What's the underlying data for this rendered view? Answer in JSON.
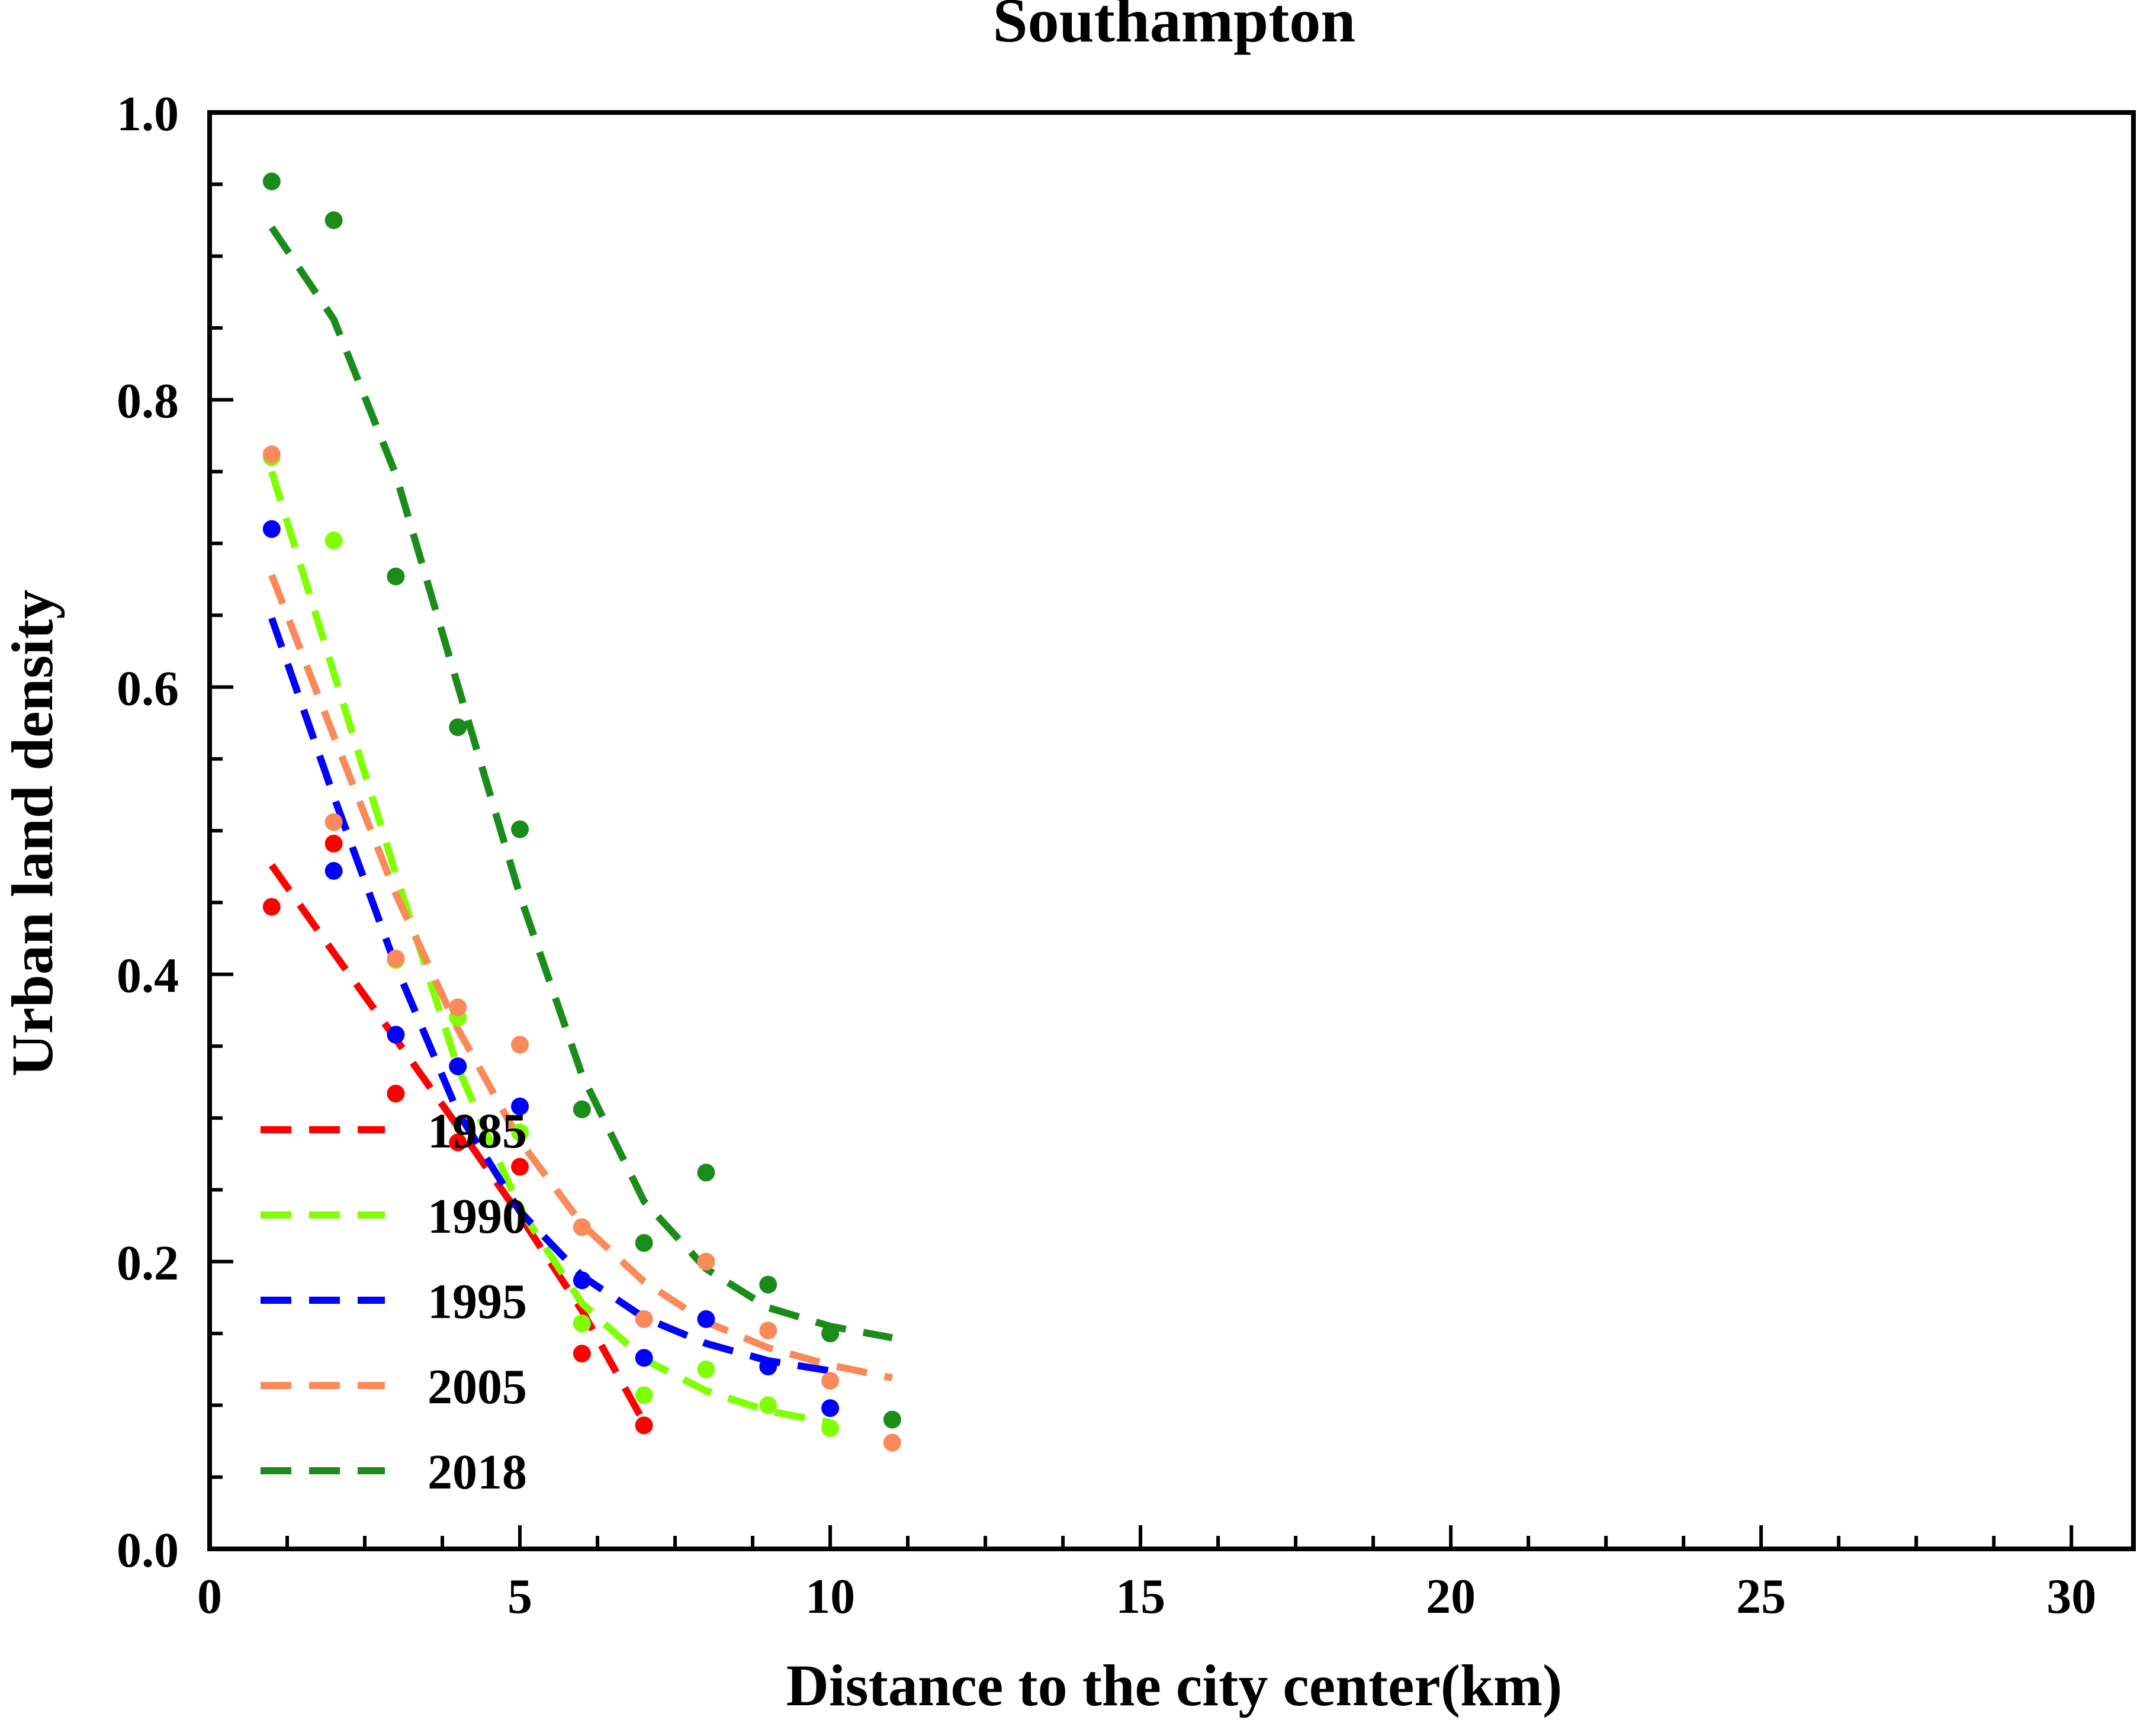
{
  "chart_data": {
    "type": "scatter",
    "title": "Southampton",
    "xlabel": "Distance to the city center(km)",
    "ylabel": "Urban land density",
    "xlim": [
      0,
      31
    ],
    "ylim": [
      0,
      1.0
    ],
    "grid": false,
    "legend_position": "lower-left",
    "x_ticks": [
      0,
      5,
      10,
      15,
      20,
      25,
      30
    ],
    "x_tick_labels": [
      "0",
      "5",
      "10",
      "15",
      "20",
      "25",
      "30"
    ],
    "y_ticks": [
      0.0,
      0.2,
      0.4,
      0.6,
      0.8,
      1.0
    ],
    "y_tick_labels": [
      "0.0",
      "0.2",
      "0.4",
      "0.6",
      "0.8",
      "1.0"
    ],
    "series": [
      {
        "name": "1985",
        "color": "#ff0000",
        "points": {
          "x": [
            1,
            2,
            3,
            4,
            5,
            6,
            7
          ],
          "y": [
            0.447,
            0.491,
            0.317,
            0.283,
            0.266,
            0.136,
            0.086
          ]
        },
        "fit": {
          "x": [
            1,
            2,
            3,
            4,
            5,
            6,
            7
          ],
          "y": [
            0.476,
            0.415,
            0.355,
            0.294,
            0.232,
            0.166,
            0.088
          ]
        }
      },
      {
        "name": "1990",
        "color": "#7fff00",
        "points": {
          "x": [
            1,
            2,
            3,
            4,
            5,
            6,
            7,
            8,
            9,
            10
          ],
          "y": [
            0.76,
            0.702,
            0.41,
            0.37,
            0.29,
            0.157,
            0.107,
            0.125,
            0.1,
            0.084
          ]
        },
        "fit": {
          "x": [
            1,
            2,
            3,
            4,
            5,
            6,
            7,
            8,
            9,
            10
          ],
          "y": [
            0.75,
            0.61,
            0.47,
            0.335,
            0.237,
            0.171,
            0.132,
            0.11,
            0.096,
            0.088
          ]
        }
      },
      {
        "name": "1995",
        "color": "#0000ff",
        "points": {
          "x": [
            1,
            2,
            3,
            4,
            5,
            6,
            7,
            8,
            9,
            10
          ],
          "y": [
            0.71,
            0.472,
            0.358,
            0.336,
            0.308,
            0.187,
            0.133,
            0.16,
            0.127,
            0.098
          ]
        },
        "fit": {
          "x": [
            1,
            2,
            3,
            4,
            5,
            6,
            7,
            8,
            9,
            10
          ],
          "y": [
            0.648,
            0.524,
            0.406,
            0.304,
            0.235,
            0.19,
            0.161,
            0.143,
            0.131,
            0.124
          ]
        }
      },
      {
        "name": "2005",
        "color": "#fa8a5a",
        "points": {
          "x": [
            1,
            2,
            3,
            4,
            5,
            6,
            7,
            8,
            9,
            10,
            11
          ],
          "y": [
            0.762,
            0.506,
            0.411,
            0.377,
            0.351,
            0.224,
            0.16,
            0.2,
            0.152,
            0.117,
            0.074
          ]
        },
        "fit": {
          "x": [
            1,
            2,
            3,
            4,
            5,
            6,
            7,
            8,
            9,
            10,
            11
          ],
          "y": [
            0.678,
            0.566,
            0.456,
            0.362,
            0.284,
            0.226,
            0.186,
            0.158,
            0.14,
            0.128,
            0.119
          ]
        }
      },
      {
        "name": "2018",
        "color": "#1a8c1a",
        "points": {
          "x": [
            1,
            2,
            3,
            4,
            5,
            6,
            7,
            8,
            9,
            10,
            11
          ],
          "y": [
            0.952,
            0.925,
            0.677,
            0.572,
            0.501,
            0.306,
            0.213,
            0.262,
            0.184,
            0.15,
            0.09
          ]
        },
        "fit": {
          "x": [
            1,
            2,
            3,
            4,
            5,
            6,
            7,
            8,
            9,
            10,
            11
          ],
          "y": [
            0.92,
            0.856,
            0.748,
            0.601,
            0.455,
            0.33,
            0.242,
            0.195,
            0.168,
            0.155,
            0.147
          ]
        }
      }
    ]
  }
}
